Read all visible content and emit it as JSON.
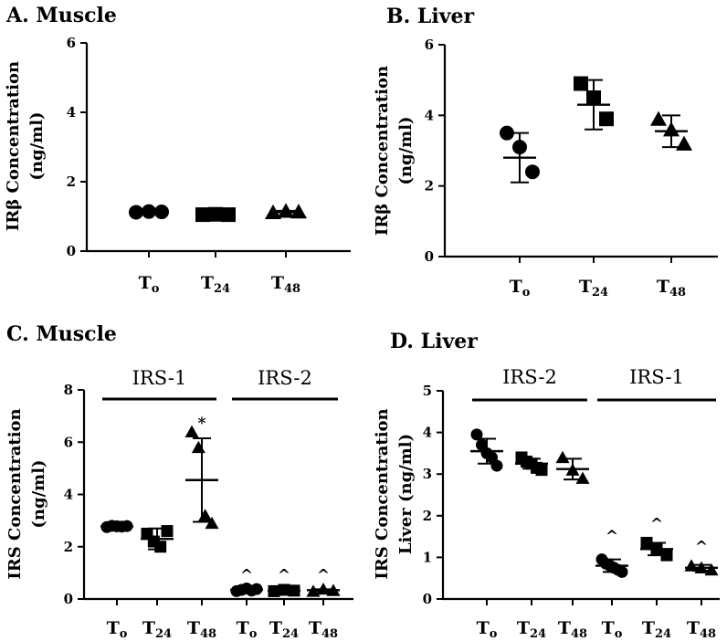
{
  "chart_data": [
    {
      "panel": "A",
      "type": "scatter",
      "title": "A. Muscle",
      "ylabel": [
        "IRβ Concentration",
        "(ng/ml)"
      ],
      "ylim": [
        0,
        6
      ],
      "yticks": [
        "0",
        "2",
        "4",
        "6"
      ],
      "categories": [
        {
          "main": "T",
          "sub": "o"
        },
        {
          "main": "T",
          "sub": "24"
        },
        {
          "main": "T",
          "sub": "48"
        }
      ],
      "groups": [],
      "series": [
        {
          "name": "T0",
          "marker": "circle",
          "points": [
            1.12,
            1.14,
            1.13
          ],
          "mean": 1.13,
          "sd": 0.02
        },
        {
          "name": "T24",
          "marker": "square",
          "points": [
            1.05,
            1.06,
            1.05
          ],
          "mean": 1.05,
          "sd": 0.02
        },
        {
          "name": "T48",
          "marker": "triangle",
          "points": [
            1.12,
            1.16,
            1.14
          ],
          "mean": 1.14,
          "sd": 0.02
        }
      ],
      "annotations": []
    },
    {
      "panel": "B",
      "type": "scatter",
      "title": "B. Liver",
      "ylabel": [
        "IRβ Concentration",
        "(ng/ml)"
      ],
      "ylim": [
        0,
        6
      ],
      "yticks": [
        "0",
        "2",
        "4",
        "6"
      ],
      "categories": [
        {
          "main": "T",
          "sub": "o"
        },
        {
          "main": "T",
          "sub": "24"
        },
        {
          "main": "T",
          "sub": "48"
        }
      ],
      "groups": [],
      "series": [
        {
          "name": "T0",
          "marker": "circle",
          "points": [
            3.5,
            3.1,
            2.4
          ],
          "mean": 2.8,
          "sd": 0.7
        },
        {
          "name": "T24",
          "marker": "square",
          "points": [
            4.9,
            4.5,
            3.9
          ],
          "mean": 4.3,
          "sd": 0.7
        },
        {
          "name": "T48",
          "marker": "triangle",
          "points": [
            3.9,
            3.6,
            3.2
          ],
          "mean": 3.55,
          "sd": 0.45
        }
      ],
      "annotations": []
    },
    {
      "panel": "C",
      "type": "scatter",
      "title": "C. Muscle",
      "ylabel": [
        "IRS Concentration",
        "(ng/ml)"
      ],
      "ylim": [
        0,
        8
      ],
      "yticks": [
        "0",
        "2",
        "4",
        "6",
        "8"
      ],
      "categories": [
        {
          "main": "T",
          "sub": "o"
        },
        {
          "main": "T",
          "sub": "24"
        },
        {
          "main": "T",
          "sub": "48"
        },
        {
          "main": "T",
          "sub": "o"
        },
        {
          "main": "T",
          "sub": "24"
        },
        {
          "main": "T",
          "sub": "48"
        }
      ],
      "groups": [
        {
          "label": "IRS-1",
          "from": 0,
          "to": 2
        },
        {
          "label": "IRS-2",
          "from": 3,
          "to": 5
        }
      ],
      "series": [
        {
          "name": "IRS-1 T0",
          "marker": "circle",
          "points": [
            2.75,
            2.8,
            2.78,
            2.77,
            2.79
          ],
          "mean": 2.78,
          "sd": 0.05
        },
        {
          "name": "IRS-1 T24",
          "marker": "square",
          "points": [
            2.5,
            2.2,
            2.0,
            2.6
          ],
          "mean": 2.3,
          "sd": 0.4
        },
        {
          "name": "IRS-1 T48",
          "marker": "triangle",
          "points": [
            6.4,
            5.8,
            3.2,
            2.9
          ],
          "mean": 4.55,
          "sd": 1.6
        },
        {
          "name": "IRS-2 T0",
          "marker": "circle",
          "points": [
            0.3,
            0.35,
            0.4,
            0.32,
            0.38
          ],
          "mean": 0.35,
          "sd": 0.05
        },
        {
          "name": "IRS-2 T24",
          "marker": "square",
          "points": [
            0.3,
            0.35,
            0.32
          ],
          "mean": 0.32,
          "sd": 0.03
        },
        {
          "name": "IRS-2 T48",
          "marker": "triangle",
          "points": [
            0.3,
            0.38,
            0.33
          ],
          "mean": 0.34,
          "sd": 0.03
        }
      ],
      "annotations": [
        {
          "category": 2,
          "text": "*",
          "y": 6.7
        },
        {
          "category": 3,
          "text": "^",
          "y": 0.9
        },
        {
          "category": 4,
          "text": "^",
          "y": 0.9
        },
        {
          "category": 5,
          "text": "^",
          "y": 0.9
        }
      ]
    },
    {
      "panel": "D",
      "type": "scatter",
      "title": "D. Liver",
      "ylabel": [
        "IRS Concentration",
        "Liver (ng/ml)"
      ],
      "ylim": [
        0,
        5
      ],
      "yticks": [
        "0",
        "1",
        "2",
        "3",
        "4",
        "5"
      ],
      "categories": [
        {
          "main": "T",
          "sub": "o"
        },
        {
          "main": "T",
          "sub": "24"
        },
        {
          "main": "T",
          "sub": "48"
        },
        {
          "main": "T",
          "sub": "o"
        },
        {
          "main": "T",
          "sub": "24"
        },
        {
          "main": "T",
          "sub": "48"
        }
      ],
      "groups": [
        {
          "label": "IRS-2",
          "from": 0,
          "to": 2
        },
        {
          "label": "IRS-1",
          "from": 3,
          "to": 5
        }
      ],
      "series": [
        {
          "name": "IRS-2 T0",
          "marker": "circle",
          "points": [
            3.95,
            3.7,
            3.5,
            3.4,
            3.2
          ],
          "mean": 3.55,
          "sd": 0.3
        },
        {
          "name": "IRS-2 T24",
          "marker": "square",
          "points": [
            3.4,
            3.3,
            3.25,
            3.15,
            3.1
          ],
          "mean": 3.25,
          "sd": 0.12
        },
        {
          "name": "IRS-2 T48",
          "marker": "triangle",
          "points": [
            3.4,
            3.1,
            2.9
          ],
          "mean": 3.12,
          "sd": 0.25
        },
        {
          "name": "IRS-1 T0",
          "marker": "circle",
          "points": [
            0.95,
            0.85,
            0.8,
            0.75,
            0.7,
            0.65
          ],
          "mean": 0.8,
          "sd": 0.15
        },
        {
          "name": "IRS-1 T24",
          "marker": "square",
          "points": [
            1.35,
            1.2,
            1.05
          ],
          "mean": 1.2,
          "sd": 0.15
        },
        {
          "name": "IRS-1 T48",
          "marker": "triangle",
          "points": [
            0.8,
            0.75,
            0.7
          ],
          "mean": 0.75,
          "sd": 0.07
        }
      ],
      "annotations": [
        {
          "category": 3,
          "text": "^",
          "y": 1.5
        },
        {
          "category": 4,
          "text": "^",
          "y": 1.8
        },
        {
          "category": 5,
          "text": "^",
          "y": 1.25
        }
      ]
    }
  ]
}
